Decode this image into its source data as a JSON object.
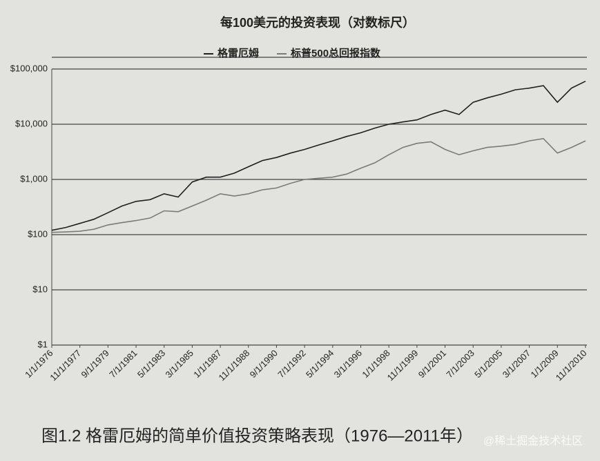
{
  "chart_data": {
    "type": "line",
    "title": "每100美元的投资表现（对数标尺）",
    "caption": "图1.2  格雷厄姆的简单价值投资策略表现（1976—2011年）",
    "watermark": "@稀土掘金技术社区",
    "categories": [
      "1/1/1976",
      null,
      "11/1/1977",
      null,
      "9/1/1979",
      null,
      "7/1/1981",
      null,
      "5/1/1983",
      null,
      "3/1/1985",
      null,
      "1/1/1987",
      null,
      "11/1/1988",
      null,
      "9/1/1990",
      null,
      "7/1/1992",
      null,
      "5/1/1994",
      null,
      "3/1/1996",
      null,
      "1/1/1998",
      null,
      "11/1/1999",
      null,
      "9/1/2001",
      null,
      "7/1/2003",
      null,
      "5/1/2005",
      null,
      "3/1/2007",
      null,
      "1/1/2009",
      null,
      "11/1/2010"
    ],
    "series": [
      {
        "name": "格雷厄姆",
        "color": "#1e1e1e",
        "values": [
          120,
          135,
          160,
          190,
          250,
          330,
          400,
          430,
          550,
          480,
          900,
          1100,
          1100,
          1300,
          1700,
          2200,
          2500,
          3000,
          3500,
          4200,
          5000,
          6000,
          7000,
          8500,
          10000,
          11000,
          12000,
          15000,
          18000,
          15000,
          25000,
          30000,
          35000,
          42000,
          45000,
          50000,
          25000,
          45000,
          60000
        ]
      },
      {
        "name": "标普500总回报指数",
        "color": "#7a7a7a",
        "values": [
          110,
          112,
          115,
          125,
          150,
          165,
          180,
          200,
          270,
          260,
          330,
          420,
          550,
          500,
          550,
          650,
          700,
          850,
          1000,
          1050,
          1100,
          1250,
          1600,
          2000,
          2800,
          3800,
          4500,
          4800,
          3500,
          2800,
          3300,
          3800,
          4000,
          4300,
          5000,
          5500,
          3000,
          3800,
          5000
        ]
      }
    ],
    "log_scale": true,
    "ylim": [
      1,
      100000
    ],
    "yticks": [
      {
        "value": 1,
        "label": "$1"
      },
      {
        "value": 10,
        "label": "$10"
      },
      {
        "value": 100,
        "label": "$100"
      },
      {
        "value": 1000,
        "label": "$1,000"
      },
      {
        "value": 10000,
        "label": "$10,000"
      },
      {
        "value": 100000,
        "label": "$100,000"
      }
    ],
    "grid": true
  }
}
